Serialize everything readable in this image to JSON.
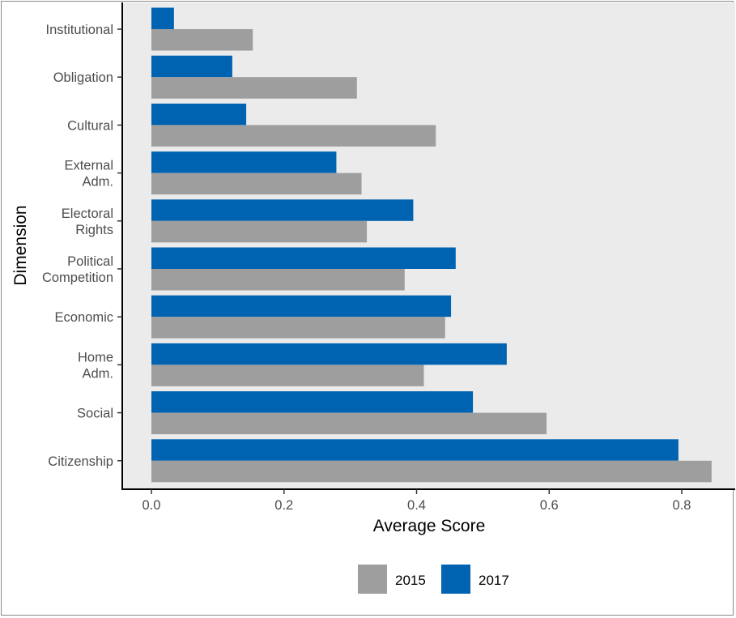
{
  "chart_data": {
    "type": "bar",
    "orientation": "horizontal",
    "xlabel": "Average Score",
    "ylabel": "Dimension",
    "xlim": [
      -0.05,
      0.88
    ],
    "x_ticks": [
      "0.0",
      "0.2",
      "0.4",
      "0.6",
      "0.8"
    ],
    "x_tick_values": [
      0.0,
      0.2,
      0.4,
      0.6,
      0.8
    ],
    "grid": false,
    "legend_position": "bottom",
    "categories": [
      [
        "Institutional"
      ],
      [
        "Obligation"
      ],
      [
        "Cultural"
      ],
      [
        "External",
        "Adm."
      ],
      [
        "Electoral",
        "Rights"
      ],
      [
        "Political",
        "Competition"
      ],
      [
        "Economic"
      ],
      [
        "Home",
        "Adm."
      ],
      [
        "Social"
      ],
      [
        "Citizenship"
      ]
    ],
    "series": [
      {
        "name": "2015",
        "color": "#9e9e9e",
        "values": [
          0.153,
          0.31,
          0.429,
          0.317,
          0.325,
          0.382,
          0.443,
          0.411,
          0.596,
          0.845
        ]
      },
      {
        "name": "2017",
        "color": "#0063b1",
        "values": [
          0.034,
          0.122,
          0.143,
          0.279,
          0.395,
          0.459,
          0.452,
          0.536,
          0.485,
          0.795
        ]
      }
    ],
    "panel_background": "#ebebeb"
  }
}
